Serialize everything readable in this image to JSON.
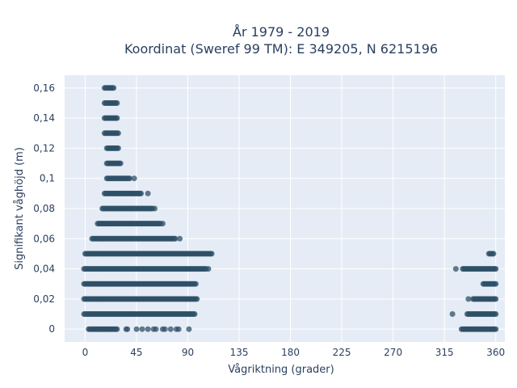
{
  "chart_data": {
    "type": "scatter",
    "title": [
      "År 1979 - 2019",
      "Koordinat (Sweref 99 TM): E 349205, N 6215196"
    ],
    "xlabel": "Vågriktning (grader)",
    "ylabel": "Signifikant våghöjd (m)",
    "xlim": [
      -18,
      368
    ],
    "ylim": [
      -0.0085,
      0.1685
    ],
    "x_ticks": [
      0,
      45,
      90,
      135,
      180,
      225,
      270,
      315,
      360
    ],
    "x_tick_labels": [
      "0",
      "45",
      "90",
      "135",
      "180",
      "225",
      "270",
      "315",
      "360"
    ],
    "y_ticks": [
      0,
      0.02,
      0.04,
      0.06,
      0.08,
      0.1,
      0.12,
      0.14,
      0.16
    ],
    "y_tick_labels": [
      "0",
      "0,02",
      "0,04",
      "0,06",
      "0,08",
      "0,1",
      "0,12",
      "0,14",
      "0,16"
    ],
    "grid": true,
    "background": "#e5ecf6",
    "marker_color": "#2f5067",
    "series": [
      {
        "note": "points rendered as dense horizontal bands: each row lists height and the x-ranges (degrees) where points lie, plus isolated points",
        "rows": [
          {
            "y": 0.16,
            "ranges": [
              [
                17,
                25
              ]
            ],
            "isolated": []
          },
          {
            "y": 0.15,
            "ranges": [
              [
                17,
                28
              ]
            ],
            "isolated": []
          },
          {
            "y": 0.14,
            "ranges": [
              [
                17,
                28
              ]
            ],
            "isolated": []
          },
          {
            "y": 0.13,
            "ranges": [
              [
                17,
                29
              ]
            ],
            "isolated": []
          },
          {
            "y": 0.12,
            "ranges": [
              [
                19,
                29
              ]
            ],
            "isolated": []
          },
          {
            "y": 0.11,
            "ranges": [
              [
                19,
                31
              ]
            ],
            "isolated": []
          },
          {
            "y": 0.1,
            "ranges": [
              [
                19,
                39
              ]
            ],
            "isolated": [
              43
            ]
          },
          {
            "y": 0.09,
            "ranges": [
              [
                17,
                49
              ]
            ],
            "isolated": [
              55
            ]
          },
          {
            "y": 0.08,
            "ranges": [
              [
                15,
                59
              ]
            ],
            "isolated": [
              61
            ]
          },
          {
            "y": 0.07,
            "ranges": [
              [
                11,
                66
              ]
            ],
            "isolated": [
              68
            ]
          },
          {
            "y": 0.06,
            "ranges": [
              [
                6,
                79
              ]
            ],
            "isolated": [
              83
            ]
          },
          {
            "y": 0.05,
            "ranges": [
              [
                0,
                111
              ]
            ],
            "isolated": []
          },
          {
            "y": 0.04,
            "ranges": [
              [
                -1,
                106
              ],
              [
                331,
                360
              ]
            ],
            "isolated": [
              108,
              325
            ]
          },
          {
            "y": 0.03,
            "ranges": [
              [
                -1,
                97
              ],
              [
                349,
                360
              ]
            ],
            "isolated": []
          },
          {
            "y": 0.02,
            "ranges": [
              [
                -1,
                98
              ],
              [
                340,
                360
              ]
            ],
            "isolated": [
              336
            ]
          },
          {
            "y": 0.01,
            "ranges": [
              [
                -1,
                96
              ],
              [
                335,
                360
              ]
            ],
            "isolated": [
              322
            ]
          },
          {
            "y": 0.0,
            "ranges": [
              [
                3,
                28
              ],
              [
                331,
                360
              ]
            ],
            "isolated": [
              36,
              37,
              45,
              50,
              55,
              60,
              62,
              68,
              70,
              75,
              80,
              82,
              91,
              330
            ]
          },
          {
            "y": 0.05,
            "ranges": [
              [
                354,
                358
              ]
            ],
            "isolated": []
          }
        ]
      }
    ]
  }
}
